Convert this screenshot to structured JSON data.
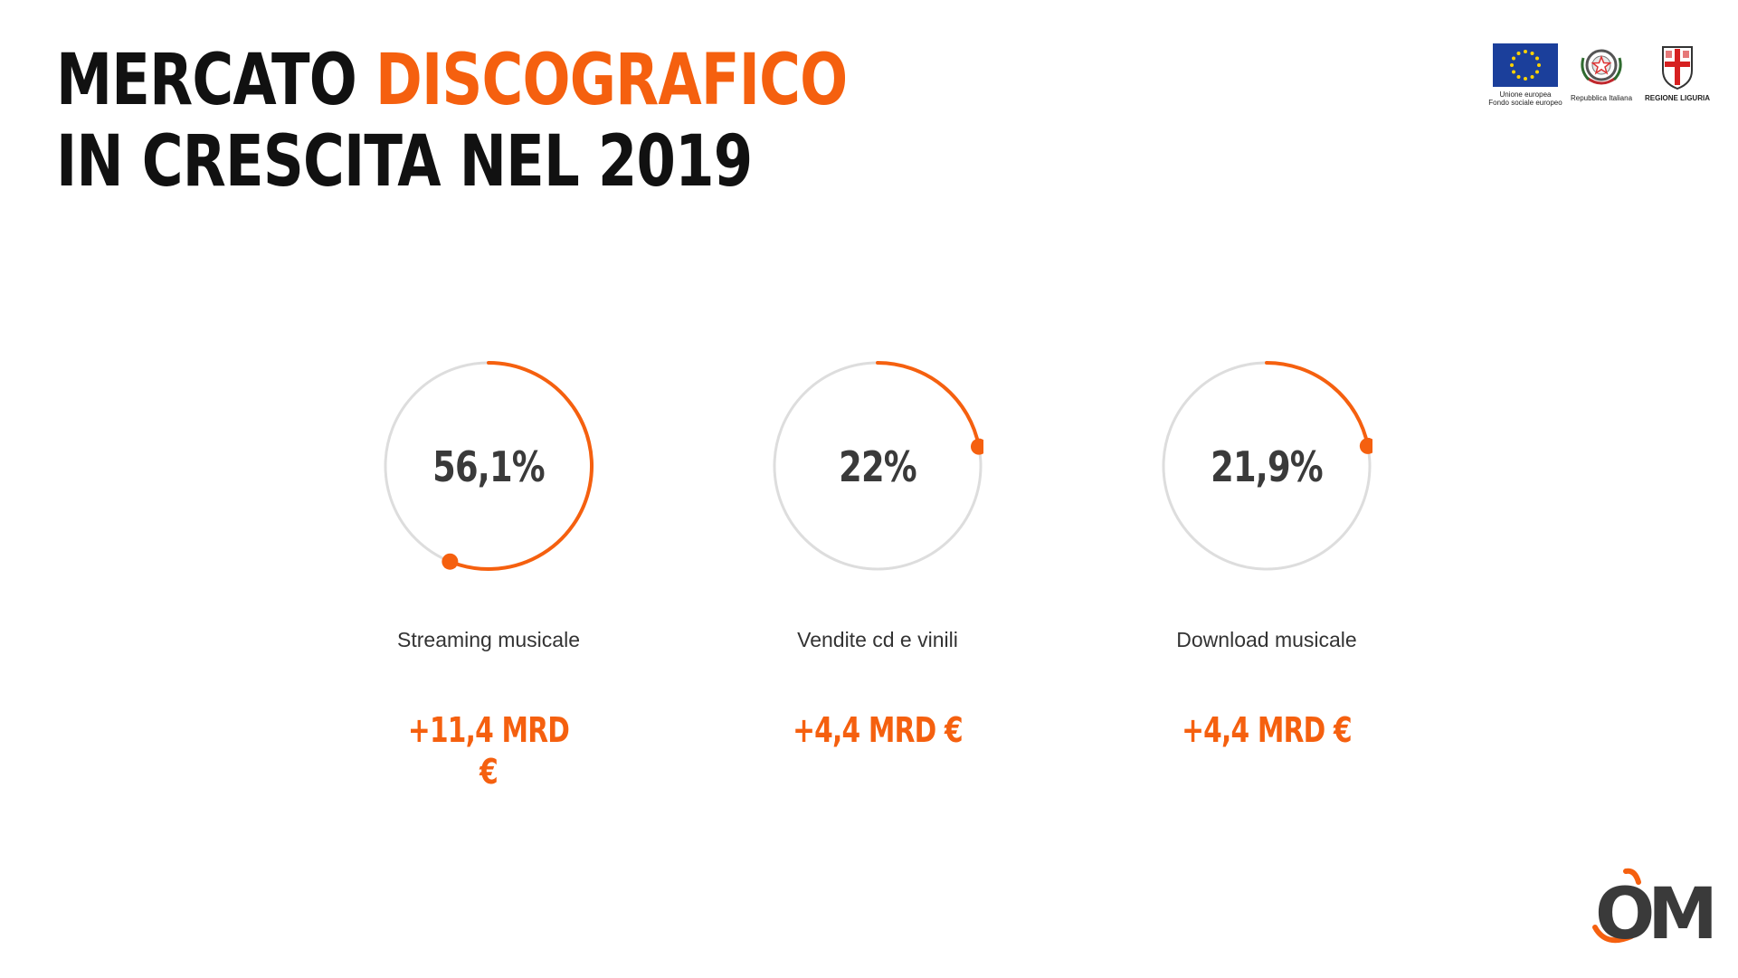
{
  "title": {
    "line1_part1": "MERCATO",
    "line1_part2": "DISCOGRAFICO",
    "line2": "IN CRESCITA NEL 2019"
  },
  "colors": {
    "accent": "#f5600f",
    "track": "#dddddd",
    "text_dark": "#111111",
    "value_text": "#3a3a3a"
  },
  "logos": {
    "eu_line1": "Unione europea",
    "eu_line2": "Fondo sociale europeo",
    "italy": "Repubblica Italiana",
    "liguria": "REGIONE LIGURIA",
    "brand": "OM"
  },
  "chart_data": {
    "type": "radial-progress",
    "unit": "%",
    "series": [
      {
        "label": "Streaming musicale",
        "value": 56.1,
        "display": "56,1%",
        "amount": "+11,4 MRD €"
      },
      {
        "label": "Vendite cd e vinili",
        "value": 22,
        "display": "22%",
        "amount": "+4,4 MRD €"
      },
      {
        "label": "Download musicale",
        "value": 21.9,
        "display": "21,9%",
        "amount": "+4,4 MRD €"
      }
    ]
  }
}
